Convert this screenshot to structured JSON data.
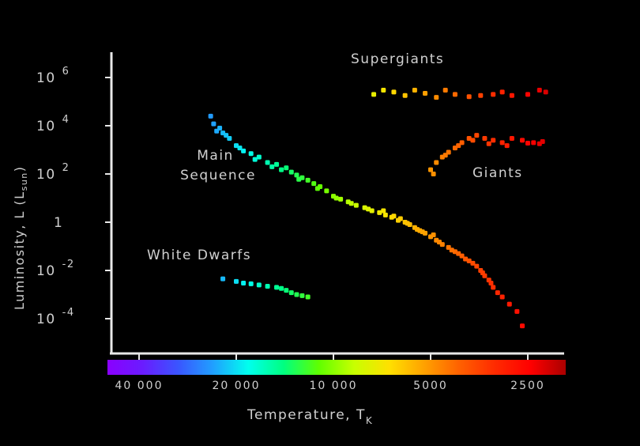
{
  "chart_data": {
    "type": "scatter",
    "title": "",
    "xlabel": "Temperature, T",
    "xlabel_sub": "K",
    "ylabel": "Luminosity, L (L",
    "ylabel_sub": "sun",
    "ylabel_close": ")",
    "x_axis_reversed": true,
    "x_scale": "log",
    "y_scale": "log",
    "xlim": [
      50000,
      2000
    ],
    "ylim": [
      1e-05,
      5000000
    ],
    "x_ticks": [
      {
        "value": 40000,
        "label": "40 000"
      },
      {
        "value": 20000,
        "label": "20 000"
      },
      {
        "value": 10000,
        "label": "10 000"
      },
      {
        "value": 5000,
        "label": "5000"
      },
      {
        "value": 2500,
        "label": "2500"
      }
    ],
    "y_ticks": [
      {
        "value": 1000000,
        "base": "10",
        "exp": "6"
      },
      {
        "value": 10000,
        "base": "10",
        "exp": "4"
      },
      {
        "value": 100,
        "base": "10",
        "exp": "2"
      },
      {
        "value": 1,
        "base": "1",
        "exp": ""
      },
      {
        "value": 0.01,
        "base": "10",
        "exp": "-2"
      },
      {
        "value": 0.0001,
        "base": "10",
        "exp": "-4"
      }
    ],
    "grid": false,
    "legend": "none",
    "color_bar": {
      "colors": [
        "#8a00ff",
        "#6a1cff",
        "#3a55ff",
        "#20a0ff",
        "#00ffee",
        "#00ff80",
        "#60ff00",
        "#c8ff00",
        "#ffe000",
        "#ffa000",
        "#ff6000",
        "#ff2a00",
        "#ff0000",
        "#aa0000"
      ]
    },
    "annotations": [
      {
        "id": "supergiants",
        "lines": [
          "Supergiants"
        ]
      },
      {
        "id": "main-sequence",
        "lines": [
          "Main",
          "Sequence"
        ]
      },
      {
        "id": "giants",
        "lines": [
          "Giants"
        ]
      },
      {
        "id": "white-dwarfs",
        "lines": [
          "White Dwarfs"
        ]
      }
    ],
    "series": [
      {
        "id": "main_sequence",
        "points": [
          [
            24000,
            25000
          ],
          [
            23500,
            12000
          ],
          [
            23000,
            6000
          ],
          [
            22000,
            5000
          ],
          [
            21000,
            3000
          ],
          [
            20000,
            1500
          ],
          [
            19000,
            900
          ],
          [
            18000,
            700
          ],
          [
            17000,
            500
          ],
          [
            16000,
            300
          ],
          [
            15000,
            250
          ],
          [
            14000,
            180
          ],
          [
            13500,
            120
          ],
          [
            13000,
            90
          ],
          [
            12500,
            70
          ],
          [
            12000,
            55
          ],
          [
            11500,
            40
          ],
          [
            11000,
            30
          ],
          [
            10500,
            20
          ],
          [
            10000,
            12
          ],
          [
            9500,
            9
          ],
          [
            9000,
            7
          ],
          [
            8500,
            5
          ],
          [
            8000,
            4
          ],
          [
            7600,
            3
          ],
          [
            7200,
            2.5
          ],
          [
            6900,
            2
          ],
          [
            6600,
            1.6
          ],
          [
            6300,
            1.2
          ],
          [
            6000,
            1
          ],
          [
            5800,
            0.8
          ],
          [
            5600,
            0.6
          ],
          [
            5400,
            0.45
          ],
          [
            5200,
            0.35
          ],
          [
            5000,
            0.25
          ],
          [
            4800,
            0.18
          ],
          [
            4600,
            0.12
          ],
          [
            4400,
            0.09
          ],
          [
            4200,
            0.06
          ],
          [
            4000,
            0.04
          ],
          [
            3800,
            0.025
          ],
          [
            3600,
            0.015
          ],
          [
            3500,
            0.01
          ],
          [
            3400,
            0.006
          ],
          [
            3300,
            0.004
          ],
          [
            3200,
            0.002
          ],
          [
            3100,
            0.0012
          ],
          [
            3000,
            0.0008
          ],
          [
            2850,
            0.0004
          ],
          [
            2700,
            0.0002
          ],
          [
            22500,
            8000
          ],
          [
            21500,
            4000
          ],
          [
            19500,
            1200
          ],
          [
            17500,
            400
          ],
          [
            15500,
            200
          ],
          [
            14500,
            150
          ],
          [
            12800,
            60
          ],
          [
            11200,
            25
          ],
          [
            9800,
            10
          ],
          [
            8800,
            6
          ],
          [
            7800,
            3.5
          ],
          [
            7000,
            3
          ],
          [
            6500,
            1.8
          ],
          [
            6200,
            1.4
          ],
          [
            5900,
            0.9
          ],
          [
            5500,
            0.5
          ],
          [
            5300,
            0.4
          ],
          [
            4900,
            0.3
          ],
          [
            4700,
            0.15
          ],
          [
            4300,
            0.07
          ],
          [
            4100,
            0.05
          ],
          [
            3900,
            0.03
          ],
          [
            3700,
            0.02
          ],
          [
            3450,
            0.008
          ],
          [
            3250,
            0.003
          ],
          [
            2600,
            5e-05
          ]
        ]
      },
      {
        "id": "supergiants",
        "points": [
          [
            7500,
            200000
          ],
          [
            7000,
            300000
          ],
          [
            6500,
            250000
          ],
          [
            6000,
            180000
          ],
          [
            5600,
            300000
          ],
          [
            5200,
            220000
          ],
          [
            4800,
            150000
          ],
          [
            4500,
            300000
          ],
          [
            4200,
            200000
          ],
          [
            3800,
            160000
          ],
          [
            3500,
            180000
          ],
          [
            3200,
            200000
          ],
          [
            3000,
            250000
          ],
          [
            2800,
            180000
          ],
          [
            2500,
            200000
          ],
          [
            2300,
            300000
          ],
          [
            2200,
            250000
          ]
        ]
      },
      {
        "id": "giants",
        "points": [
          [
            5000,
            150
          ],
          [
            4800,
            300
          ],
          [
            4600,
            500
          ],
          [
            4400,
            800
          ],
          [
            4200,
            1200
          ],
          [
            4000,
            2000
          ],
          [
            3800,
            3000
          ],
          [
            3600,
            4000
          ],
          [
            3400,
            3000
          ],
          [
            3200,
            2500
          ],
          [
            3000,
            2000
          ],
          [
            2800,
            3000
          ],
          [
            2600,
            2500
          ],
          [
            2400,
            2000
          ],
          [
            2300,
            1800
          ],
          [
            4900,
            100
          ],
          [
            4500,
            600
          ],
          [
            4100,
            1500
          ],
          [
            3700,
            2500
          ],
          [
            3300,
            1800
          ],
          [
            2900,
            1500
          ],
          [
            2500,
            1900
          ],
          [
            2250,
            2200
          ]
        ]
      },
      {
        "id": "white_dwarfs",
        "points": [
          [
            22000,
            0.0045
          ],
          [
            20000,
            0.0035
          ],
          [
            19000,
            0.003
          ],
          [
            18000,
            0.0028
          ],
          [
            17000,
            0.0025
          ],
          [
            16000,
            0.0022
          ],
          [
            15000,
            0.002
          ],
          [
            14500,
            0.0018
          ],
          [
            14000,
            0.0015
          ],
          [
            13500,
            0.0012
          ],
          [
            13000,
            0.001
          ],
          [
            12500,
            0.0009
          ],
          [
            12000,
            0.0008
          ]
        ]
      }
    ]
  }
}
